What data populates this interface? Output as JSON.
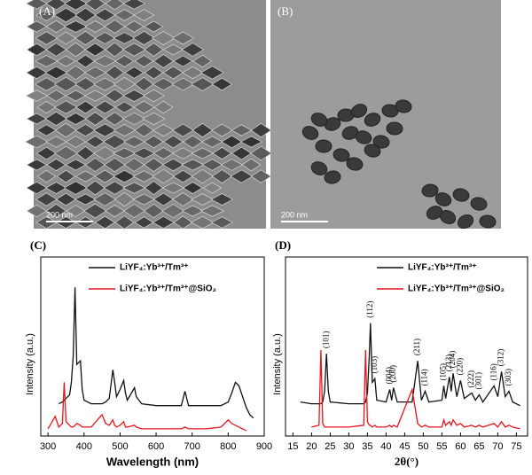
{
  "images": [
    {
      "panel": "(A)",
      "scale_bar": "200 nm"
    },
    {
      "panel": "(B)",
      "scale_bar": "200 nm"
    }
  ],
  "chart_data": [
    {
      "type": "line",
      "panel": "(C)",
      "xlabel": "Wavelength (nm)",
      "ylabel": "Intensity (a.u.)",
      "xlim": [
        280,
        900
      ],
      "xticks": [
        300,
        400,
        500,
        600,
        700,
        800,
        900
      ],
      "ylim": [
        0,
        100
      ],
      "x": [
        300,
        320,
        330,
        340,
        345,
        350,
        360,
        365,
        370,
        375,
        380,
        390,
        395,
        400,
        420,
        450,
        460,
        470,
        480,
        485,
        490,
        500,
        510,
        515,
        520,
        540,
        545,
        560,
        600,
        640,
        670,
        680,
        690,
        700,
        740,
        780,
        800,
        810,
        820,
        830,
        840,
        850,
        860,
        870
      ],
      "series": [
        {
          "name": "LiYF₄:Yb³⁺/Tm³⁺",
          "color": "#111111",
          "values": [
            null,
            null,
            18,
            19,
            20,
            21,
            23,
            30,
            45,
            83,
            40,
            42,
            26,
            20,
            18,
            18,
            19,
            21,
            37,
            30,
            22,
            26,
            31,
            24,
            20,
            27,
            22,
            18,
            17,
            17,
            17,
            25,
            17,
            17,
            17,
            17,
            19,
            24,
            30,
            28,
            22,
            16,
            12,
            10
          ]
        },
        {
          "name": "LiYF₄:Yb³⁺/Tm³⁺@SiO₂",
          "color": "#e8141c",
          "values": [
            4,
            11,
            5,
            7,
            30,
            8,
            6,
            5,
            5,
            6,
            7,
            6,
            5,
            5,
            5,
            12,
            7,
            6,
            9,
            6,
            5,
            6,
            8,
            5,
            5,
            6,
            5,
            4,
            4,
            4,
            4,
            5,
            4,
            4,
            4,
            5,
            9,
            7,
            6,
            5,
            4,
            3,
            null,
            null
          ]
        }
      ]
    },
    {
      "type": "line",
      "panel": "(D)",
      "xlabel": "2θ(°)",
      "ylabel": "Intensity (a.u.)",
      "xlim": [
        13,
        78
      ],
      "xticks": [
        15,
        20,
        25,
        30,
        35,
        40,
        45,
        50,
        55,
        60,
        65,
        70,
        75
      ],
      "ylim": [
        0,
        100
      ],
      "x": [
        17,
        20,
        22,
        22.5,
        23,
        23.5,
        24,
        24.5,
        25,
        30,
        34,
        34.5,
        35,
        35.5,
        35.8,
        36.3,
        37,
        37.5,
        40,
        41,
        41.5,
        42,
        43,
        47,
        48.5,
        49.5,
        50.5,
        51.5,
        55,
        55.5,
        56,
        57,
        57.5,
        58,
        59,
        60,
        61,
        63,
        64,
        65,
        66,
        69,
        70,
        71,
        72,
        73,
        74,
        76
      ],
      "series": [
        {
          "name": "LiYF₄:Yb³⁺/Tm³⁺",
          "color": "#111111",
          "values": [
            19,
            18,
            18,
            18,
            19,
            25,
            46,
            25,
            19,
            18,
            18,
            19,
            24,
            45,
            63,
            30,
            32,
            20,
            19,
            26,
            20,
            27,
            19,
            19,
            42,
            20,
            25,
            19,
            20,
            28,
            21,
            33,
            25,
            35,
            22,
            31,
            21,
            24,
            20,
            23,
            19,
            28,
            22,
            36,
            22,
            25,
            19,
            17
          ]
        },
        {
          "name": "LiYF₄:Yb³⁺/Tm³⁺@SiO₂",
          "color": "#e8141c",
          "values": [
            null,
            5,
            6,
            48,
            7,
            5,
            5,
            5,
            5,
            5,
            6,
            48,
            8,
            6,
            6,
            5,
            6,
            5,
            5,
            6,
            5,
            6,
            5,
            26,
            7,
            5,
            6,
            5,
            5,
            9,
            6,
            8,
            6,
            9,
            6,
            7,
            5,
            6,
            5,
            6,
            5,
            7,
            5,
            8,
            5,
            6,
            5,
            4
          ]
        }
      ],
      "annotations": [
        {
          "text": "(101)",
          "x": 24
        },
        {
          "text": "(112)",
          "x": 35.8
        },
        {
          "text": "(103)",
          "x": 37
        },
        {
          "text": "(004)",
          "x": 41
        },
        {
          "text": "(200)",
          "x": 42
        },
        {
          "text": "(211)",
          "x": 48.5
        },
        {
          "text": "(114)",
          "x": 50.5
        },
        {
          "text": "(105)",
          "x": 55.5
        },
        {
          "text": "(213)",
          "x": 57
        },
        {
          "text": "(204)",
          "x": 58
        },
        {
          "text": "(220)",
          "x": 60
        },
        {
          "text": "(222)",
          "x": 63
        },
        {
          "text": "(301)",
          "x": 65
        },
        {
          "text": "(116)",
          "x": 69
        },
        {
          "text": "(312)",
          "x": 71
        },
        {
          "text": "(303)",
          "x": 73
        }
      ]
    }
  ]
}
